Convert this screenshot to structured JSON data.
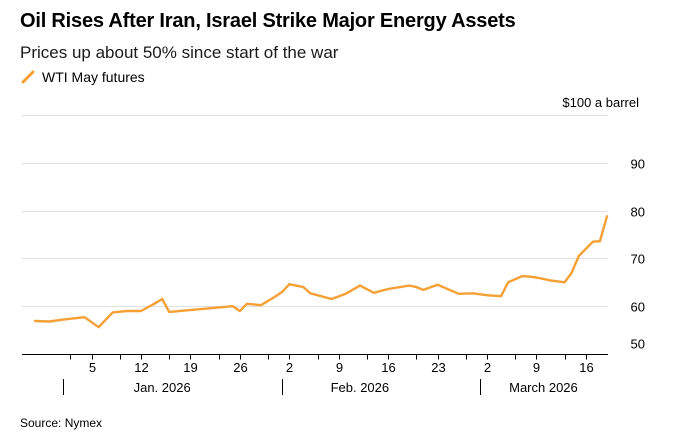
{
  "chart_data": {
    "type": "line",
    "title": "Oil Rises After Iran, Israel Strike Major Energy Assets",
    "subtitle": "Prices up about 50% since start of the war",
    "unit_label": "$100 a barrel",
    "source": "Source: Nymex",
    "legend_position": "top-left",
    "color": "#f5a034",
    "gridline_color": "#e0e0e0",
    "axis_color": "#000000",
    "ylim": [
      50,
      100
    ],
    "y_ticks": [
      {
        "value": 60,
        "label": "60"
      },
      {
        "value": 70,
        "label": "70"
      },
      {
        "value": 80,
        "label": "80"
      },
      {
        "value": 90,
        "label": "90"
      }
    ],
    "y_ticks_low": [
      {
        "value": 50,
        "label": "50"
      }
    ],
    "x_day_range": [
      -5,
      77
    ],
    "x_ticks": [
      {
        "day": 4,
        "label": "5"
      },
      {
        "day": 11,
        "label": "12"
      },
      {
        "day": 18,
        "label": "19"
      },
      {
        "day": 25,
        "label": "26"
      },
      {
        "day": 32,
        "label": "2"
      },
      {
        "day": 39,
        "label": "9"
      },
      {
        "day": 46,
        "label": "16"
      },
      {
        "day": 53,
        "label": "23"
      },
      {
        "day": 60,
        "label": "2"
      },
      {
        "day": 67,
        "label": "9"
      },
      {
        "day": 74,
        "label": "16"
      }
    ],
    "x_minor_ticks": [
      1,
      8,
      15,
      22,
      29,
      36,
      43,
      50,
      57,
      64,
      71
    ],
    "month_dividers": [
      0,
      31,
      59
    ],
    "months": [
      {
        "day": 14,
        "label": "Jan. 2026"
      },
      {
        "day": 42,
        "label": "Feb. 2026"
      },
      {
        "day": 68,
        "label": "March 2026"
      }
    ],
    "series": [
      {
        "name": "WTI May futures",
        "x": [
          -4,
          -2,
          0,
          3,
          5,
          7,
          9,
          11,
          13,
          14,
          15,
          24,
          25,
          26,
          28,
          30,
          31,
          32,
          34,
          35,
          38,
          40,
          42,
          44,
          46,
          49,
          50,
          51,
          53,
          56,
          58,
          60,
          62,
          63,
          65,
          66,
          67,
          69,
          71,
          72,
          73,
          75,
          76,
          77
        ],
        "values": [
          56.9,
          56.8,
          57.2,
          57.7,
          55.6,
          58.7,
          59.0,
          59.0,
          60.6,
          61.5,
          58.8,
          60.0,
          59.0,
          60.5,
          60.2,
          62.0,
          63.0,
          64.6,
          64.0,
          62.7,
          61.5,
          62.6,
          64.3,
          62.8,
          63.6,
          64.3,
          64.0,
          63.4,
          64.5,
          62.6,
          62.7,
          62.3,
          62.1,
          65.0,
          66.3,
          66.2,
          66.0,
          65.4,
          65.0,
          67.0,
          70.5,
          73.5,
          73.6,
          78.8
        ]
      }
    ]
  }
}
